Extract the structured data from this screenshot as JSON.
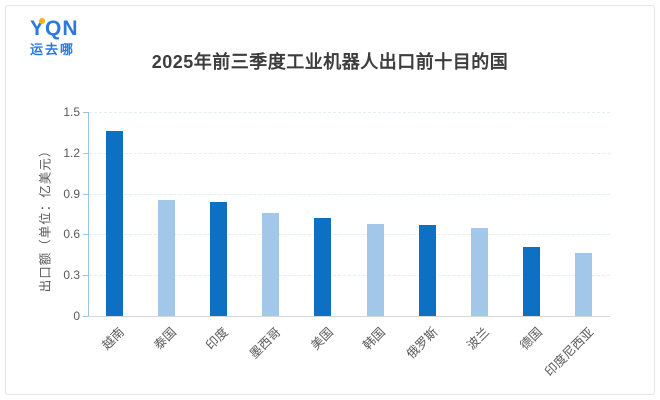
{
  "logo": {
    "text": "YQN",
    "subtext": "运去哪",
    "brand_color": "#2b7ae0",
    "dot_color": "#f5b40a"
  },
  "title": "2025年前三季度工业机器人出口前十目的国",
  "chart_data": {
    "type": "bar",
    "title": "2025年前三季度工业机器人出口前十目的国",
    "categories": [
      "越南",
      "泰国",
      "印度",
      "墨西哥",
      "美国",
      "韩国",
      "俄罗斯",
      "波兰",
      "德国",
      "印度尼西亚"
    ],
    "values": [
      1.36,
      0.85,
      0.84,
      0.76,
      0.72,
      0.68,
      0.67,
      0.65,
      0.51,
      0.46
    ],
    "xlabel": "",
    "ylabel": "出口额（单位：亿美元）",
    "ylim": [
      0,
      1.5
    ],
    "yticks": [
      "0",
      "0.3",
      "0.6",
      "0.9",
      "1.2",
      "1.5"
    ],
    "grid": "horizontal-dashed",
    "legend_position": "none",
    "bar_color_odd_rank": "#0d70c2",
    "bar_color_even_rank": "#a3c7e8",
    "axis_line_color": "#9dc3e6",
    "baseline_color": "#d6d6d6"
  }
}
